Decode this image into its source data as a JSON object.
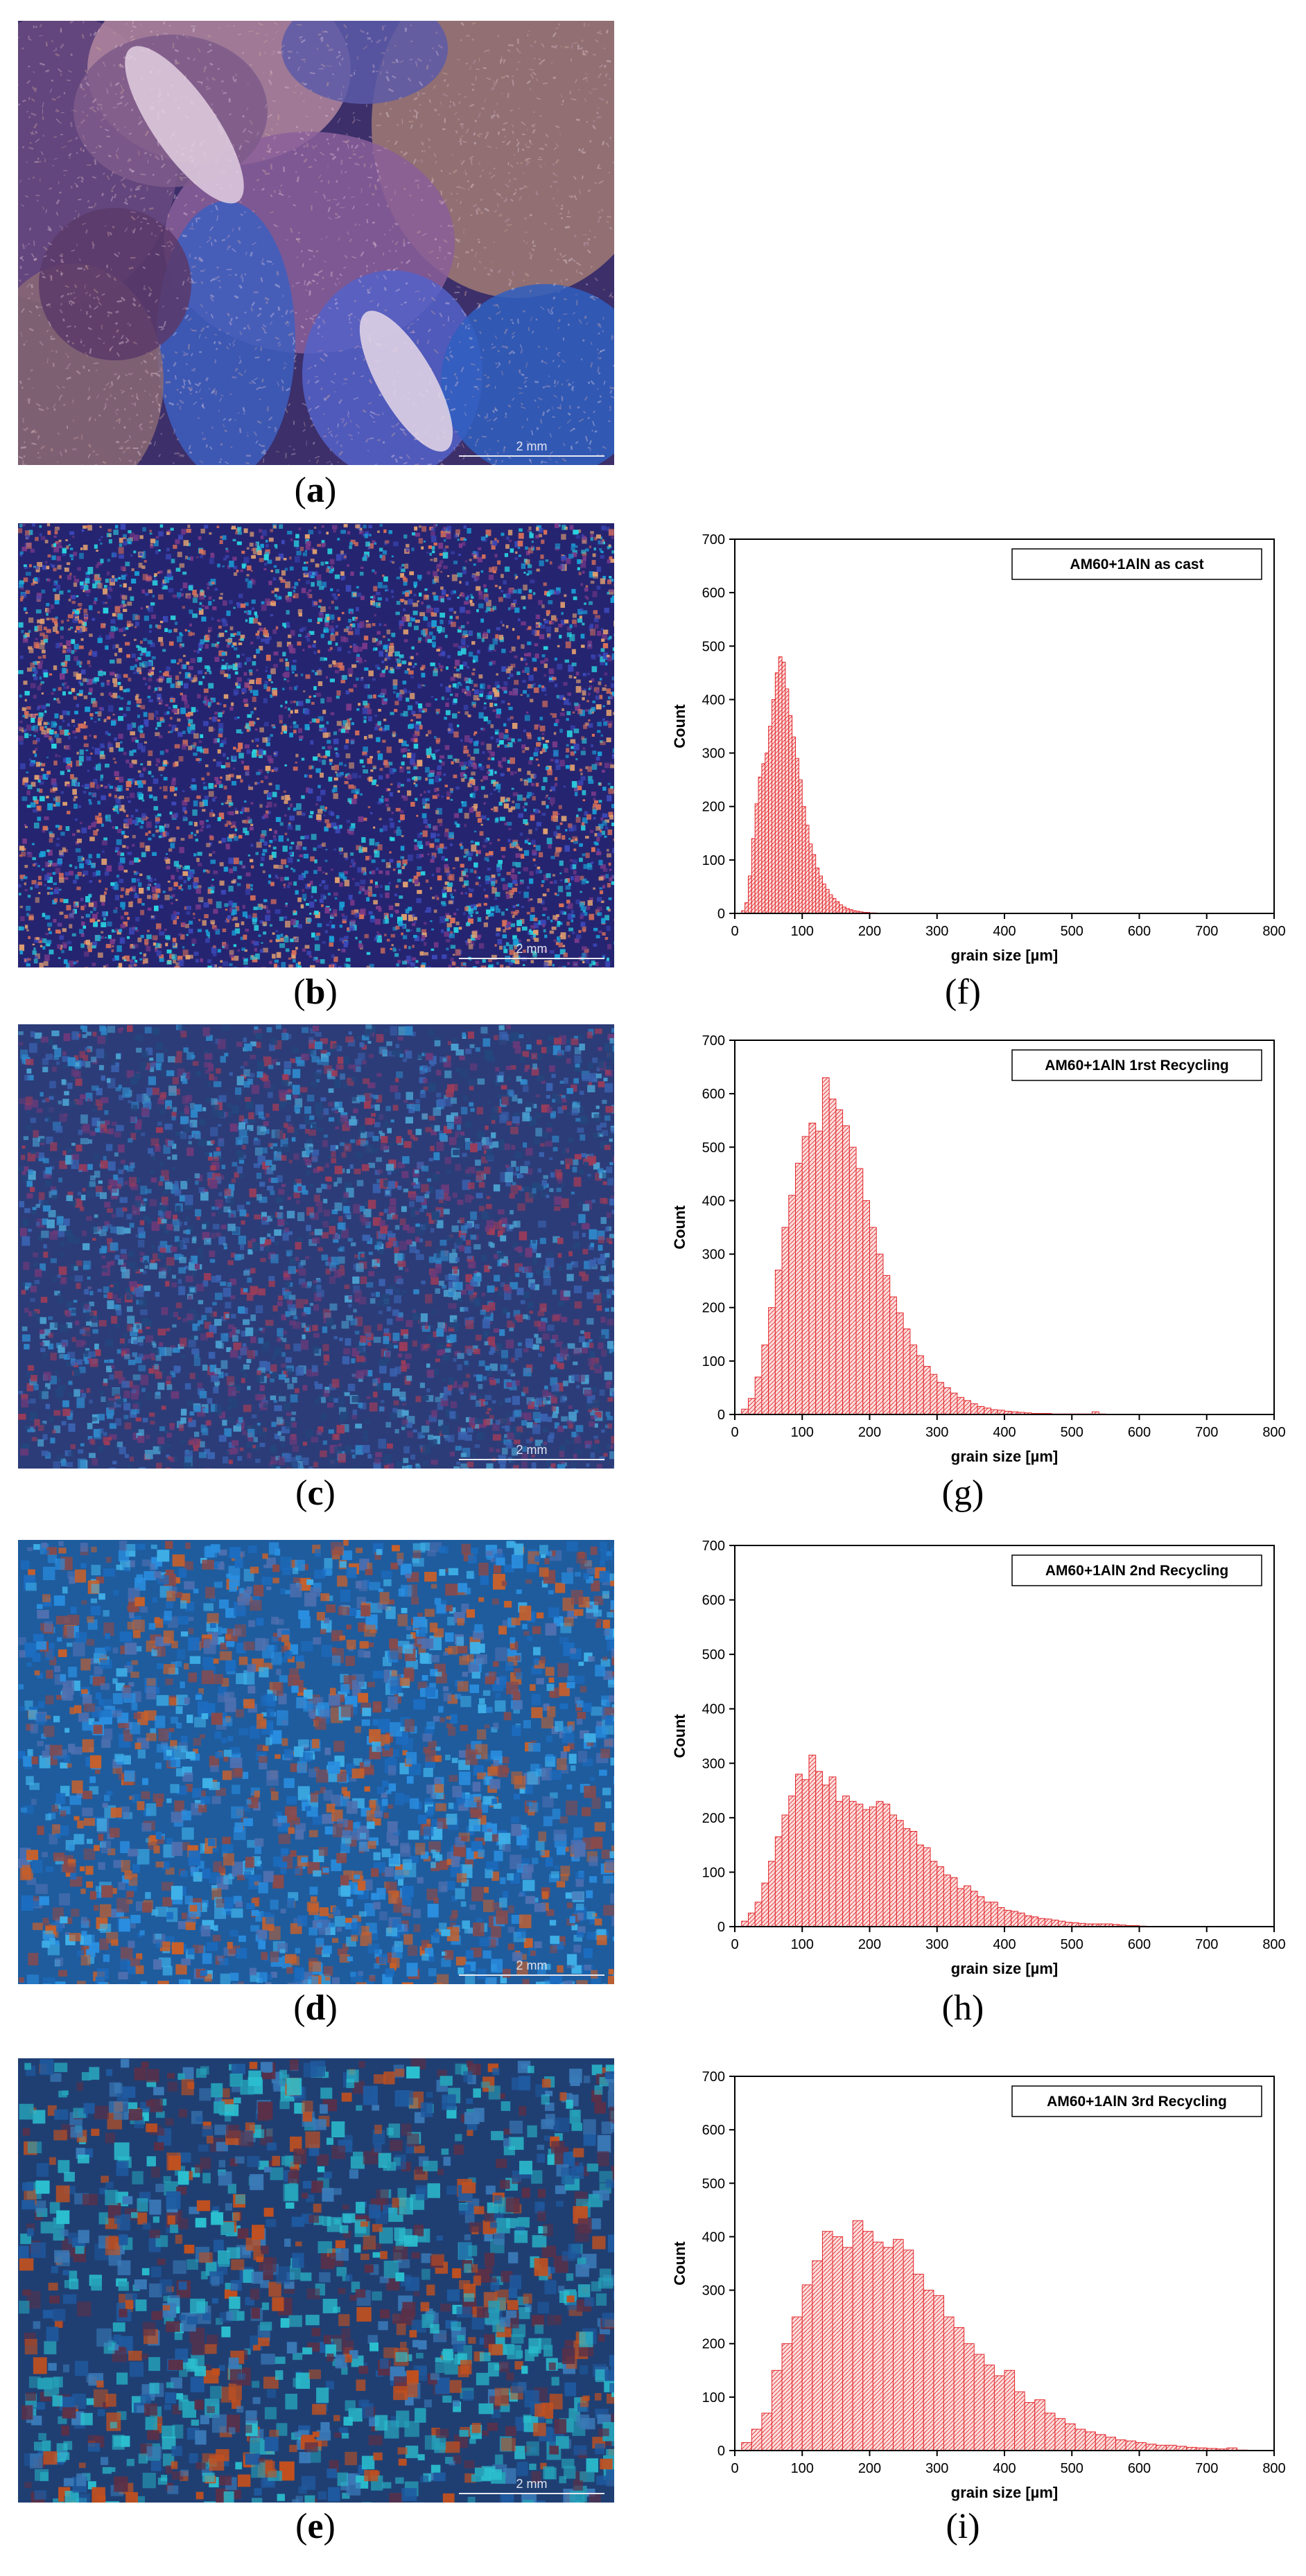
{
  "colors": {
    "bar_stroke": "#e2262b",
    "bar_fill": "#fbdedd",
    "axis": "#000000"
  },
  "micrographs": [
    {
      "id": "a",
      "caption": "a",
      "scale": "2 mm",
      "style": "coarse-dendritic"
    },
    {
      "id": "b",
      "caption": "b",
      "scale": "2 mm",
      "style": "fine-dots"
    },
    {
      "id": "c",
      "caption": "c",
      "scale": "2 mm",
      "style": "fine-mosaic"
    },
    {
      "id": "d",
      "caption": "d",
      "scale": "2 mm",
      "style": "medium-mosaic"
    },
    {
      "id": "e",
      "caption": "e",
      "scale": "2 mm",
      "style": "coarse-mosaic"
    }
  ],
  "chart_captions": [
    "f",
    "g",
    "h",
    "i"
  ],
  "chart_data": [
    {
      "type": "bar",
      "legend": "AM60+1AlN as cast",
      "xlabel": "grain size [µm]",
      "ylabel": "Count",
      "xlim": [
        0,
        800
      ],
      "ylim": [
        0,
        700
      ],
      "xticks": [
        0,
        100,
        200,
        300,
        400,
        500,
        600,
        700,
        800
      ],
      "yticks": [
        0,
        100,
        200,
        300,
        400,
        500,
        600,
        700
      ],
      "bin_width": 5,
      "bin_start": 10,
      "values": [
        5,
        20,
        70,
        140,
        205,
        255,
        280,
        300,
        350,
        400,
        450,
        480,
        470,
        420,
        370,
        330,
        290,
        250,
        200,
        165,
        130,
        110,
        85,
        70,
        55,
        45,
        35,
        28,
        22,
        16,
        12,
        9,
        7,
        5,
        4,
        3,
        2,
        2,
        1,
        1
      ]
    },
    {
      "type": "bar",
      "legend": "AM60+1AlN  1rst Recycling",
      "xlabel": "grain size [µm]",
      "ylabel": "Count",
      "xlim": [
        0,
        800
      ],
      "ylim": [
        0,
        700
      ],
      "xticks": [
        0,
        100,
        200,
        300,
        400,
        500,
        600,
        700,
        800
      ],
      "yticks": [
        0,
        100,
        200,
        300,
        400,
        500,
        600,
        700
      ],
      "bin_width": 10,
      "bin_start": 10,
      "values": [
        10,
        30,
        70,
        130,
        200,
        270,
        350,
        410,
        470,
        520,
        545,
        530,
        630,
        590,
        570,
        540,
        500,
        460,
        400,
        350,
        300,
        260,
        220,
        190,
        160,
        130,
        110,
        90,
        75,
        60,
        50,
        40,
        32,
        26,
        20,
        15,
        12,
        9,
        8,
        6,
        5,
        4,
        3,
        2,
        2,
        2,
        1,
        1,
        1,
        1,
        1,
        1,
        5,
        1
      ]
    },
    {
      "type": "bar",
      "legend": "AM60+1AlN  2nd Recycling",
      "xlabel": "grain size [µm]",
      "ylabel": "Count",
      "xlim": [
        0,
        800
      ],
      "ylim": [
        0,
        700
      ],
      "xticks": [
        0,
        100,
        200,
        300,
        400,
        500,
        600,
        700,
        800
      ],
      "yticks": [
        0,
        100,
        200,
        300,
        400,
        500,
        600,
        700
      ],
      "bin_width": 10,
      "bin_start": 10,
      "values": [
        10,
        25,
        45,
        80,
        120,
        165,
        205,
        240,
        280,
        270,
        315,
        285,
        260,
        275,
        230,
        240,
        230,
        225,
        215,
        220,
        230,
        225,
        205,
        195,
        180,
        175,
        150,
        145,
        120,
        110,
        95,
        90,
        70,
        75,
        65,
        55,
        45,
        45,
        35,
        30,
        28,
        25,
        20,
        18,
        15,
        14,
        12,
        10,
        8,
        7,
        6,
        5,
        5,
        5,
        5,
        4,
        3,
        2,
        2,
        1
      ]
    },
    {
      "type": "bar",
      "legend": "AM60+1AlN  3rd Recycling",
      "xlabel": "grain size [µm]",
      "ylabel": "Count",
      "xlim": [
        0,
        800
      ],
      "ylim": [
        0,
        700
      ],
      "xticks": [
        0,
        100,
        200,
        300,
        400,
        500,
        600,
        700,
        800
      ],
      "yticks": [
        0,
        100,
        200,
        300,
        400,
        500,
        600,
        700
      ],
      "bin_width": 15,
      "bin_start": 10,
      "values": [
        15,
        40,
        70,
        150,
        200,
        250,
        310,
        355,
        410,
        400,
        380,
        430,
        410,
        390,
        380,
        395,
        375,
        330,
        300,
        290,
        250,
        230,
        200,
        180,
        160,
        140,
        150,
        110,
        90,
        95,
        70,
        60,
        50,
        40,
        35,
        30,
        25,
        20,
        18,
        15,
        12,
        10,
        10,
        8,
        6,
        5,
        4,
        3,
        5,
        1
      ]
    }
  ]
}
